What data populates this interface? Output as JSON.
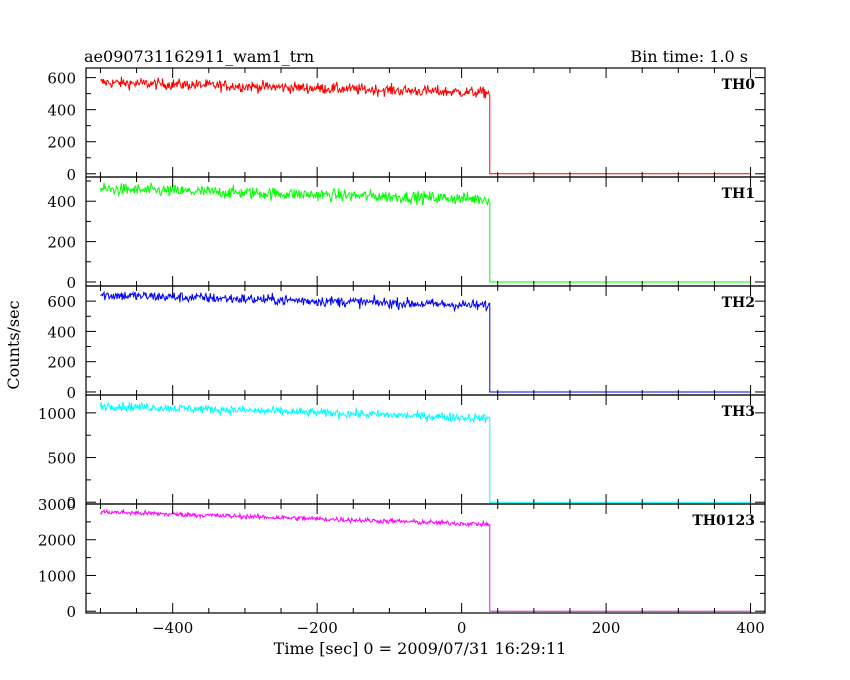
{
  "header": {
    "title": "ae090731162911_wam1_trn",
    "bin_time": "Bin time: 1.0 s"
  },
  "axes": {
    "xlabel": "Time [sec] 0 = 2009/07/31 16:29:11",
    "ylabel": "Counts/sec"
  },
  "chart_data": {
    "type": "line",
    "x_range": [
      -520,
      420
    ],
    "x_ticks": [
      -400,
      -200,
      0,
      200,
      400
    ],
    "x_tick_labels": [
      "−400",
      "−200",
      "0",
      "200",
      "400"
    ],
    "cutoff_time": 39,
    "data_start": -500,
    "grid": false,
    "panels": [
      {
        "name": "TH0",
        "color": "#ff0000",
        "ylim": [
          -20,
          660
        ],
        "y_ticks": [
          0,
          200,
          400,
          600
        ],
        "y_tick_labels": [
          "0",
          "200",
          "400",
          "600"
        ],
        "level_start": 570,
        "level_end": 505,
        "noise": 25,
        "post_level": 0
      },
      {
        "name": "TH1",
        "color": "#00ff00",
        "ylim": [
          -20,
          520
        ],
        "y_ticks": [
          0,
          200,
          400
        ],
        "y_tick_labels": [
          "0",
          "200",
          "400"
        ],
        "level_start": 460,
        "level_end": 410,
        "noise": 22,
        "post_level": 0
      },
      {
        "name": "TH2",
        "color": "#0000ff",
        "ylim": [
          -20,
          700
        ],
        "y_ticks": [
          0,
          200,
          400,
          600
        ],
        "y_tick_labels": [
          "0",
          "200",
          "400",
          "600"
        ],
        "level_start": 640,
        "level_end": 570,
        "noise": 25,
        "post_level": 0
      },
      {
        "name": "TH3",
        "color": "#00ffff",
        "ylim": [
          -20,
          1200
        ],
        "y_ticks": [
          0,
          500,
          1000
        ],
        "y_tick_labels": [
          "0",
          "500",
          "1000"
        ],
        "level_start": 1080,
        "level_end": 940,
        "noise": 35,
        "post_level": 0
      },
      {
        "name": "TH0123",
        "color": "#ff00ff",
        "ylim": [
          -50,
          3000
        ],
        "y_ticks": [
          0,
          1000,
          2000,
          3000
        ],
        "y_tick_labels": [
          "0",
          "1000",
          "2000",
          "3000"
        ],
        "level_start": 2780,
        "level_end": 2430,
        "noise": 50,
        "post_level": 0
      }
    ]
  }
}
